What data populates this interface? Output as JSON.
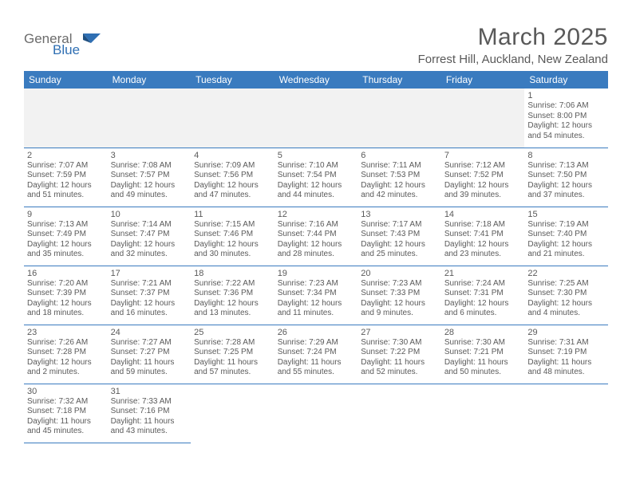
{
  "brand": {
    "name1": "General",
    "name2": "Blue"
  },
  "title": {
    "month": "March 2025",
    "location": "Forrest Hill, Auckland, New Zealand"
  },
  "colors": {
    "header_bg": "#3a7bbf",
    "header_fg": "#ffffff",
    "cell_border": "#3a7bbf",
    "empty_bg": "#f2f2f2",
    "text": "#5a5a5a",
    "logo_gray": "#6b6b6b",
    "logo_blue": "#2f6fb3"
  },
  "weekdays": [
    "Sunday",
    "Monday",
    "Tuesday",
    "Wednesday",
    "Thursday",
    "Friday",
    "Saturday"
  ],
  "first_weekday_index": 6,
  "days": [
    {
      "n": 1,
      "sunrise": "7:06 AM",
      "sunset": "8:00 PM",
      "daylight": "12 hours and 54 minutes."
    },
    {
      "n": 2,
      "sunrise": "7:07 AM",
      "sunset": "7:59 PM",
      "daylight": "12 hours and 51 minutes."
    },
    {
      "n": 3,
      "sunrise": "7:08 AM",
      "sunset": "7:57 PM",
      "daylight": "12 hours and 49 minutes."
    },
    {
      "n": 4,
      "sunrise": "7:09 AM",
      "sunset": "7:56 PM",
      "daylight": "12 hours and 47 minutes."
    },
    {
      "n": 5,
      "sunrise": "7:10 AM",
      "sunset": "7:54 PM",
      "daylight": "12 hours and 44 minutes."
    },
    {
      "n": 6,
      "sunrise": "7:11 AM",
      "sunset": "7:53 PM",
      "daylight": "12 hours and 42 minutes."
    },
    {
      "n": 7,
      "sunrise": "7:12 AM",
      "sunset": "7:52 PM",
      "daylight": "12 hours and 39 minutes."
    },
    {
      "n": 8,
      "sunrise": "7:13 AM",
      "sunset": "7:50 PM",
      "daylight": "12 hours and 37 minutes."
    },
    {
      "n": 9,
      "sunrise": "7:13 AM",
      "sunset": "7:49 PM",
      "daylight": "12 hours and 35 minutes."
    },
    {
      "n": 10,
      "sunrise": "7:14 AM",
      "sunset": "7:47 PM",
      "daylight": "12 hours and 32 minutes."
    },
    {
      "n": 11,
      "sunrise": "7:15 AM",
      "sunset": "7:46 PM",
      "daylight": "12 hours and 30 minutes."
    },
    {
      "n": 12,
      "sunrise": "7:16 AM",
      "sunset": "7:44 PM",
      "daylight": "12 hours and 28 minutes."
    },
    {
      "n": 13,
      "sunrise": "7:17 AM",
      "sunset": "7:43 PM",
      "daylight": "12 hours and 25 minutes."
    },
    {
      "n": 14,
      "sunrise": "7:18 AM",
      "sunset": "7:41 PM",
      "daylight": "12 hours and 23 minutes."
    },
    {
      "n": 15,
      "sunrise": "7:19 AM",
      "sunset": "7:40 PM",
      "daylight": "12 hours and 21 minutes."
    },
    {
      "n": 16,
      "sunrise": "7:20 AM",
      "sunset": "7:39 PM",
      "daylight": "12 hours and 18 minutes."
    },
    {
      "n": 17,
      "sunrise": "7:21 AM",
      "sunset": "7:37 PM",
      "daylight": "12 hours and 16 minutes."
    },
    {
      "n": 18,
      "sunrise": "7:22 AM",
      "sunset": "7:36 PM",
      "daylight": "12 hours and 13 minutes."
    },
    {
      "n": 19,
      "sunrise": "7:23 AM",
      "sunset": "7:34 PM",
      "daylight": "12 hours and 11 minutes."
    },
    {
      "n": 20,
      "sunrise": "7:23 AM",
      "sunset": "7:33 PM",
      "daylight": "12 hours and 9 minutes."
    },
    {
      "n": 21,
      "sunrise": "7:24 AM",
      "sunset": "7:31 PM",
      "daylight": "12 hours and 6 minutes."
    },
    {
      "n": 22,
      "sunrise": "7:25 AM",
      "sunset": "7:30 PM",
      "daylight": "12 hours and 4 minutes."
    },
    {
      "n": 23,
      "sunrise": "7:26 AM",
      "sunset": "7:28 PM",
      "daylight": "12 hours and 2 minutes."
    },
    {
      "n": 24,
      "sunrise": "7:27 AM",
      "sunset": "7:27 PM",
      "daylight": "11 hours and 59 minutes."
    },
    {
      "n": 25,
      "sunrise": "7:28 AM",
      "sunset": "7:25 PM",
      "daylight": "11 hours and 57 minutes."
    },
    {
      "n": 26,
      "sunrise": "7:29 AM",
      "sunset": "7:24 PM",
      "daylight": "11 hours and 55 minutes."
    },
    {
      "n": 27,
      "sunrise": "7:30 AM",
      "sunset": "7:22 PM",
      "daylight": "11 hours and 52 minutes."
    },
    {
      "n": 28,
      "sunrise": "7:30 AM",
      "sunset": "7:21 PM",
      "daylight": "11 hours and 50 minutes."
    },
    {
      "n": 29,
      "sunrise": "7:31 AM",
      "sunset": "7:19 PM",
      "daylight": "11 hours and 48 minutes."
    },
    {
      "n": 30,
      "sunrise": "7:32 AM",
      "sunset": "7:18 PM",
      "daylight": "11 hours and 45 minutes."
    },
    {
      "n": 31,
      "sunrise": "7:33 AM",
      "sunset": "7:16 PM",
      "daylight": "11 hours and 43 minutes."
    }
  ],
  "labels": {
    "sunrise": "Sunrise:",
    "sunset": "Sunset:",
    "daylight": "Daylight:"
  }
}
